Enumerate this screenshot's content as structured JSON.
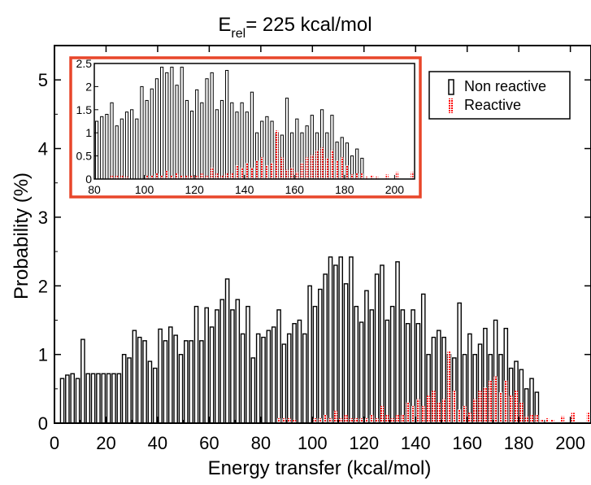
{
  "chart_data": {
    "type": "bar",
    "title": "E",
    "title_sub": "rel",
    "title_rest": "= 225 kcal/mol",
    "xlabel": "Energy transfer (kcal/mol)",
    "ylabel": "Probability (%)",
    "xlim": [
      0,
      208
    ],
    "ylim": [
      0,
      5.5
    ],
    "xticks": [
      "0",
      "20",
      "40",
      "60",
      "80",
      "100",
      "120",
      "140",
      "160",
      "180",
      "200"
    ],
    "yticks": [
      "0",
      "1",
      "2",
      "3",
      "4",
      "5"
    ],
    "legend": {
      "position": "top-right",
      "entries": [
        "Non reactive",
        "Reactive"
      ]
    },
    "series": [
      {
        "name": "Non reactive",
        "color": "#000000",
        "fill": "none",
        "x": [
          3,
          5,
          7,
          9,
          11,
          13,
          15,
          17,
          19,
          21,
          23,
          25,
          27,
          29,
          31,
          33,
          35,
          37,
          39,
          41,
          43,
          45,
          47,
          49,
          51,
          53,
          55,
          57,
          59,
          61,
          63,
          65,
          67,
          69,
          71,
          73,
          75,
          77,
          79,
          81,
          83,
          85,
          87,
          89,
          91,
          93,
          95,
          97,
          99,
          101,
          103,
          105,
          107,
          109,
          111,
          113,
          115,
          117,
          119,
          121,
          123,
          125,
          127,
          129,
          131,
          133,
          135,
          137,
          139,
          141,
          143,
          145,
          147,
          149,
          151,
          153,
          155,
          157,
          159,
          161,
          163,
          165,
          167,
          169,
          171,
          173,
          175,
          177,
          179,
          181,
          183,
          185,
          187
        ],
        "values": [
          0.65,
          0.7,
          0.72,
          0.65,
          1.22,
          0.72,
          0.72,
          0.72,
          0.72,
          0.72,
          0.72,
          0.72,
          1.0,
          0.95,
          1.35,
          1.25,
          1.2,
          0.9,
          0.8,
          1.37,
          1.2,
          1.4,
          1.28,
          1.0,
          1.2,
          1.2,
          1.7,
          1.2,
          1.68,
          1.4,
          1.65,
          1.8,
          2.1,
          1.65,
          1.8,
          1.3,
          1.7,
          0.95,
          1.3,
          1.25,
          1.35,
          1.4,
          1.65,
          1.15,
          1.3,
          1.45,
          1.5,
          1.3,
          2.0,
          1.7,
          1.95,
          2.17,
          2.42,
          2.3,
          2.42,
          2.03,
          2.42,
          1.7,
          1.47,
          1.93,
          1.65,
          2.17,
          2.3,
          1.5,
          1.7,
          2.35,
          1.65,
          1.45,
          1.65,
          1.45,
          1.88,
          1.0,
          1.25,
          1.35,
          1.25,
          1.0,
          0.95,
          1.75,
          1.0,
          1.3,
          1.0,
          1.15,
          1.38,
          1.0,
          1.5,
          1.0,
          1.38,
          0.8,
          0.9,
          0.78,
          0.5,
          0.65,
          0.45
        ]
      },
      {
        "name": "Reactive",
        "color": "#ff0000",
        "fill": "dotted",
        "x": [
          87,
          89,
          91,
          93,
          101,
          103,
          105,
          107,
          109,
          111,
          113,
          115,
          117,
          119,
          121,
          123,
          125,
          127,
          129,
          131,
          133,
          135,
          137,
          139,
          141,
          143,
          145,
          147,
          149,
          151,
          153,
          155,
          157,
          159,
          161,
          163,
          165,
          167,
          169,
          171,
          173,
          175,
          177,
          179,
          181,
          183,
          185,
          187,
          189,
          191,
          193,
          197,
          201,
          207
        ],
        "values": [
          0.07,
          0.07,
          0.07,
          0.05,
          0.07,
          0.07,
          0.12,
          0.07,
          0.18,
          0.07,
          0.12,
          0.07,
          0.07,
          0.07,
          0.07,
          0.12,
          0.07,
          0.25,
          0.12,
          0.07,
          0.12,
          0.12,
          0.3,
          0.25,
          0.35,
          0.25,
          0.4,
          0.47,
          0.3,
          0.35,
          1.05,
          0.47,
          0.2,
          0.25,
          0.15,
          0.35,
          0.47,
          0.52,
          0.62,
          0.68,
          0.45,
          0.62,
          0.4,
          0.47,
          0.3,
          0.1,
          0.12,
          0.12,
          0.05,
          0.07,
          0.05,
          0.1,
          0.15,
          0.15
        ]
      }
    ],
    "inset": {
      "xlim": [
        80,
        208
      ],
      "ylim": [
        0,
        2.5
      ],
      "xticks": [
        "80",
        "100",
        "120",
        "140",
        "160",
        "180",
        "200"
      ],
      "yticks": [
        "0",
        "0.5",
        "1",
        "1.5",
        "2",
        "2.5"
      ],
      "border_color": "#e8462a"
    }
  }
}
